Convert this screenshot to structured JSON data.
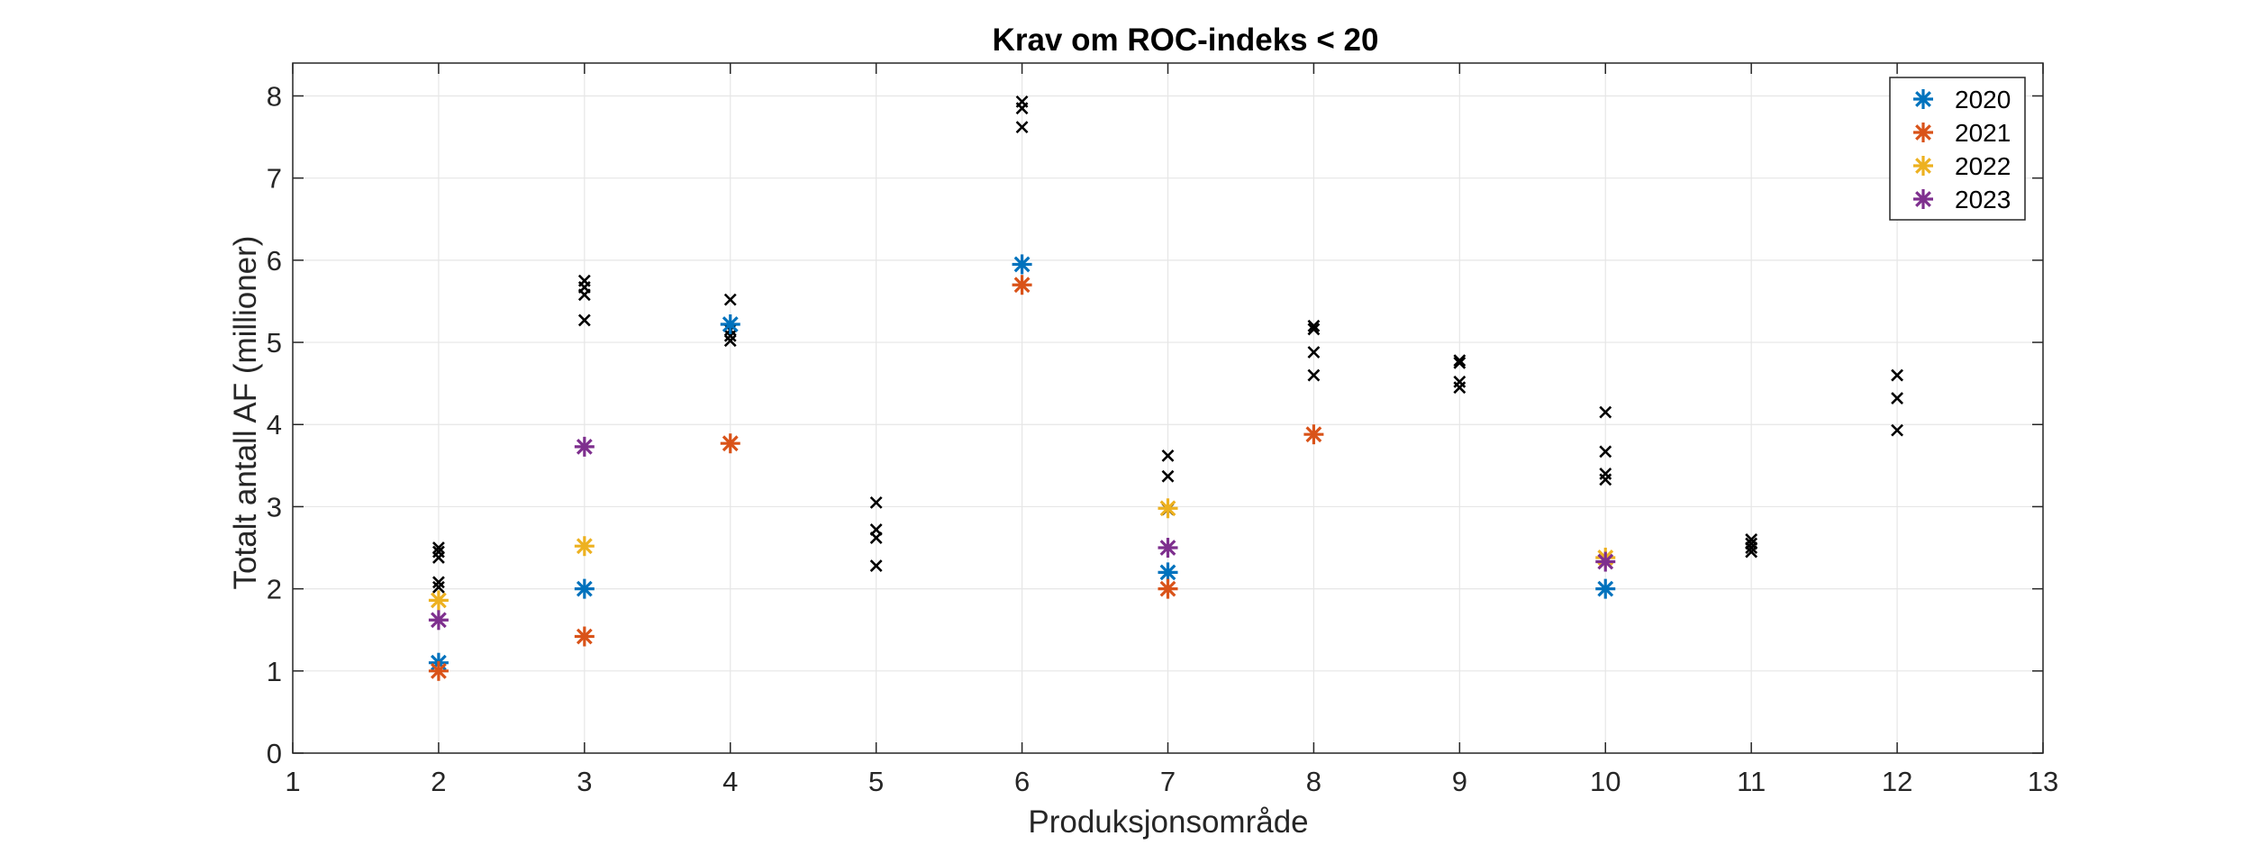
{
  "chart_data": {
    "type": "scatter",
    "title": "Krav om ROC-indeks < 20",
    "xlabel": "Produksjonsområde",
    "ylabel": "Totalt antall AF (millioner)",
    "xlim": [
      1,
      13
    ],
    "ylim": [
      0,
      8.4
    ],
    "xticks": [
      1,
      2,
      3,
      4,
      5,
      6,
      7,
      8,
      9,
      10,
      11,
      12,
      13
    ],
    "yticks": [
      0,
      1,
      2,
      3,
      4,
      5,
      6,
      7,
      8
    ],
    "grid": true,
    "legend_position": "top-right",
    "series": [
      {
        "name": "2020",
        "color": "#0072BD",
        "marker": "asterisk",
        "points": [
          [
            2,
            1.1
          ],
          [
            3,
            2.0
          ],
          [
            4,
            5.22
          ],
          [
            6,
            5.95
          ],
          [
            7,
            2.2
          ],
          [
            10,
            2.0
          ]
        ]
      },
      {
        "name": "2021",
        "color": "#D95319",
        "marker": "asterisk",
        "points": [
          [
            2,
            1.0
          ],
          [
            3,
            1.42
          ],
          [
            4,
            3.77
          ],
          [
            6,
            5.7
          ],
          [
            7,
            2.0
          ],
          [
            8,
            3.88
          ]
        ]
      },
      {
        "name": "2022",
        "color": "#EDB120",
        "marker": "asterisk",
        "points": [
          [
            2,
            1.86
          ],
          [
            3,
            2.52
          ],
          [
            7,
            2.98
          ],
          [
            10,
            2.38
          ]
        ]
      },
      {
        "name": "2023",
        "color": "#7E2F8E",
        "marker": "asterisk",
        "points": [
          [
            2,
            1.62
          ],
          [
            3,
            3.73
          ],
          [
            7,
            2.5
          ],
          [
            10,
            2.33
          ]
        ]
      }
    ],
    "unlabeled_markers": {
      "color": "#000000",
      "marker": "x",
      "points": [
        [
          2,
          2.02
        ],
        [
          2,
          2.08
        ],
        [
          2,
          2.38
        ],
        [
          2,
          2.45
        ],
        [
          2,
          2.5
        ],
        [
          3,
          5.27
        ],
        [
          3,
          5.58
        ],
        [
          3,
          5.67
        ],
        [
          3,
          5.75
        ],
        [
          4,
          5.02
        ],
        [
          4,
          5.08
        ],
        [
          4,
          5.15
        ],
        [
          4,
          5.52
        ],
        [
          5,
          2.28
        ],
        [
          5,
          2.62
        ],
        [
          5,
          2.72
        ],
        [
          5,
          3.05
        ],
        [
          6,
          7.62
        ],
        [
          6,
          7.85
        ],
        [
          6,
          7.93
        ],
        [
          7,
          2.97
        ],
        [
          7,
          3.37
        ],
        [
          7,
          3.62
        ],
        [
          8,
          4.6
        ],
        [
          8,
          4.88
        ],
        [
          8,
          5.16
        ],
        [
          8,
          5.2
        ],
        [
          9,
          4.45
        ],
        [
          9,
          4.52
        ],
        [
          9,
          4.75
        ],
        [
          9,
          4.78
        ],
        [
          10,
          3.33
        ],
        [
          10,
          3.4
        ],
        [
          10,
          3.67
        ],
        [
          10,
          4.15
        ],
        [
          11,
          2.45
        ],
        [
          11,
          2.5
        ],
        [
          11,
          2.55
        ],
        [
          11,
          2.6
        ],
        [
          12,
          3.93
        ],
        [
          12,
          4.32
        ],
        [
          12,
          4.6
        ]
      ]
    }
  }
}
